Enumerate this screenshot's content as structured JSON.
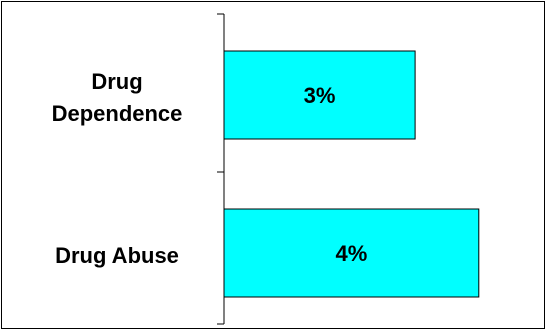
{
  "chart_data": {
    "type": "bar",
    "orientation": "horizontal",
    "categories": [
      [
        "Drug",
        "Dependence"
      ],
      [
        "Drug Abuse"
      ]
    ],
    "values": [
      3,
      4
    ],
    "data_labels": [
      "3%",
      "4%"
    ],
    "xlim": [
      0,
      5
    ],
    "title": "",
    "xlabel": "",
    "ylabel": "",
    "grid": false,
    "legend": "none",
    "bar_color": "#00ffff",
    "bar_edge_color": "#000000"
  }
}
